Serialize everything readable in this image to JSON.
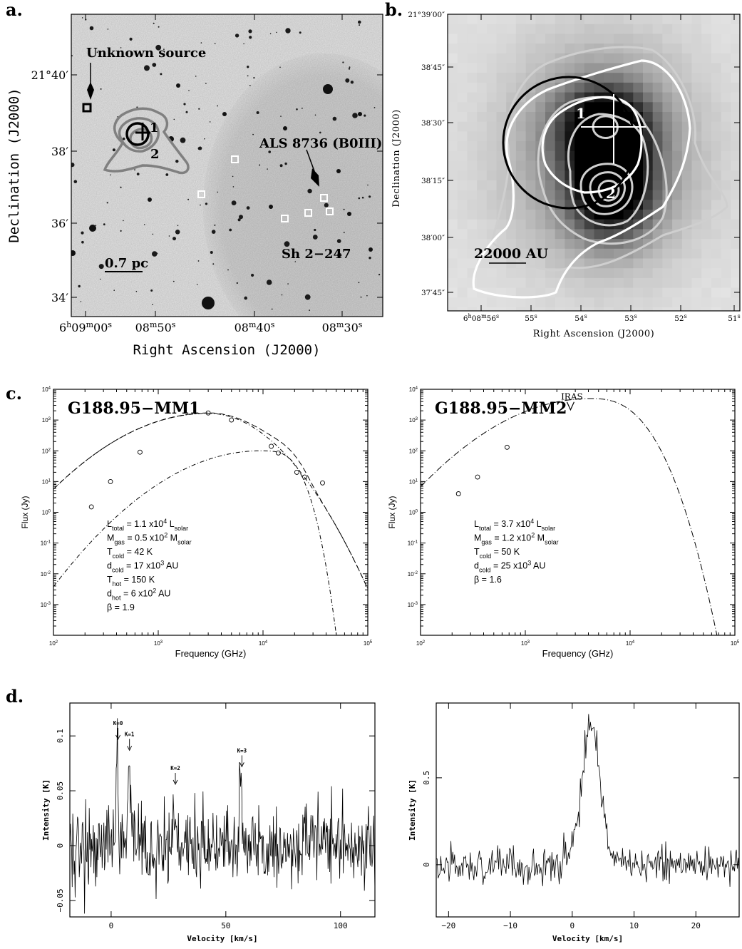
{
  "panel_labels": {
    "a": "a.",
    "b": "b.",
    "c": "c.",
    "d": "d."
  },
  "panel_a": {
    "xlabel": "Right Ascension (J2000)",
    "ylabel": "Declination (J2000)",
    "xticks": [
      {
        "h": "6",
        "hs": "h",
        "m": "09",
        "ms": "m",
        "s": "00",
        "ss": "s"
      },
      {
        "h": "",
        "hs": "",
        "m": "08",
        "ms": "m",
        "s": "50",
        "ss": "s"
      },
      {
        "h": "",
        "hs": "",
        "m": "08",
        "ms": "m",
        "s": "40",
        "ss": "s"
      },
      {
        "h": "",
        "hs": "",
        "m": "08",
        "ms": "m",
        "s": "30",
        "ss": "s"
      }
    ],
    "yticks": [
      "21°40′",
      "38′",
      "36′",
      "34′"
    ],
    "annotations": {
      "unknown": "Unknown source",
      "als": "ALS 8736 (B0III)",
      "region": "Sh 2−247",
      "scale": "0.7 pc",
      "source1": "1",
      "source2": "2"
    }
  },
  "panel_b": {
    "xlabel": "Right Ascension (J2000)",
    "ylabel": "Declination (J2000)",
    "xticks": [
      "6h08m56s",
      "55s",
      "54s",
      "53s",
      "52s",
      "51s"
    ],
    "yticks": [
      "21°39′00″",
      "38′45″",
      "38′30″",
      "38′15″",
      "38′00″",
      "37′45″"
    ],
    "annotations": {
      "scale": "22000 AU",
      "source1": "1",
      "source2": "2"
    }
  },
  "chart_data": [
    {
      "type": "scatter",
      "title": "G188.95−MM1",
      "xlabel": "Frequency (GHz)",
      "ylabel": "Flux (Jy)",
      "xscale": "log",
      "yscale": "log",
      "xlim": [
        100,
        100000
      ],
      "ylim": [
        0.0001,
        10000
      ],
      "points": [
        {
          "x": 230,
          "y": 1.5
        },
        {
          "x": 350,
          "y": 10
        },
        {
          "x": 670,
          "y": 90
        },
        {
          "x": 3000,
          "y": 1700
        },
        {
          "x": 5000,
          "y": 1000
        },
        {
          "x": 12000,
          "y": 140
        },
        {
          "x": 14000,
          "y": 85
        },
        {
          "x": 21000,
          "y": 20
        },
        {
          "x": 25000,
          "y": 14
        },
        {
          "x": 37000,
          "y": 9
        }
      ],
      "series": [
        {
          "name": "total",
          "style": "long-dash"
        },
        {
          "name": "cold",
          "style": "dash-dot"
        },
        {
          "name": "hot",
          "style": "dash-dot"
        }
      ],
      "params": [
        {
          "base": "L",
          "sub": "total",
          "mid": " = 1.1 x10",
          "sup": "4",
          "rest": " L",
          "unit_sub": "solar"
        },
        {
          "base": "M",
          "sub": "gas",
          "mid": " = 0.5 x10",
          "sup": "2",
          "rest": " M",
          "unit_sub": "solar"
        },
        {
          "base": "T",
          "sub": "cold",
          "mid": " = 42 K",
          "sup": "",
          "rest": "",
          "unit_sub": ""
        },
        {
          "base": "d",
          "sub": "cold",
          "mid": " = 17 x10",
          "sup": "3",
          "rest": " AU",
          "unit_sub": ""
        },
        {
          "base": "T",
          "sub": "hot",
          "mid": " = 150 K",
          "sup": "",
          "rest": "",
          "unit_sub": ""
        },
        {
          "base": "d",
          "sub": "hot",
          "mid": " = 6 x10",
          "sup": "2",
          "rest": " AU",
          "unit_sub": ""
        },
        {
          "base": "β",
          "sub": "",
          "mid": " = 1.9",
          "sup": "",
          "rest": "",
          "unit_sub": ""
        }
      ],
      "xtick_labels": [
        "10",
        "10",
        "10",
        "10"
      ],
      "xtick_exps": [
        "2",
        "3",
        "4",
        "5"
      ],
      "ytick_exps": [
        "4",
        "3",
        "2",
        "1",
        "0",
        "-1",
        "-2",
        "-3"
      ]
    },
    {
      "type": "scatter",
      "title": "G188.95−MM2",
      "annotation": "IRAS",
      "xlabel": "Frequency (GHz)",
      "ylabel": "Flux (Jy)",
      "xscale": "log",
      "yscale": "log",
      "xlim": [
        100,
        100000
      ],
      "ylim": [
        0.0001,
        10000
      ],
      "points": [
        {
          "x": 230,
          "y": 4
        },
        {
          "x": 350,
          "y": 14
        },
        {
          "x": 670,
          "y": 130
        }
      ],
      "upper_limit": {
        "x": 2700,
        "y": 4800
      },
      "series": [
        {
          "name": "model",
          "style": "long-dash"
        }
      ],
      "params": [
        {
          "base": "L",
          "sub": "total",
          "mid": " = 3.7 x10",
          "sup": "4",
          "rest": " L",
          "unit_sub": "solar"
        },
        {
          "base": "M",
          "sub": "gas",
          "mid": " = 1.2 x10",
          "sup": "2",
          "rest": " M",
          "unit_sub": "solar"
        },
        {
          "base": "T",
          "sub": "cold",
          "mid": " = 50 K",
          "sup": "",
          "rest": "",
          "unit_sub": ""
        },
        {
          "base": "d",
          "sub": "cold",
          "mid": " = 25 x10",
          "sup": "3",
          "rest": " AU",
          "unit_sub": ""
        },
        {
          "base": "β",
          "sub": "",
          "mid": " = 1.6",
          "sup": "",
          "rest": "",
          "unit_sub": ""
        }
      ],
      "xtick_labels": [
        "10",
        "10",
        "10",
        "10"
      ],
      "xtick_exps": [
        "2",
        "3",
        "4",
        "5"
      ],
      "ytick_exps": [
        "4",
        "3",
        "2",
        "1",
        "0",
        "-1",
        "-2",
        "-3"
      ]
    },
    {
      "type": "line",
      "xlabel": "Velocity  [km/s]",
      "ylabel": "Intensity [K]",
      "xlim": [
        -18,
        115
      ],
      "ylim": [
        -0.065,
        0.13
      ],
      "xticks": [
        0,
        50,
        100
      ],
      "yticks": [
        -0.05,
        0,
        0.05,
        0.1
      ],
      "ytick_labels": [
        "−0.05",
        "0",
        "0.05",
        "0.1"
      ],
      "annotations": [
        {
          "label": "K=0",
          "x": 3,
          "y": 0.093
        },
        {
          "label": "K=1",
          "x": 8,
          "y": 0.083
        },
        {
          "label": "K=2",
          "x": 28,
          "y": 0.052
        },
        {
          "label": "K=3",
          "x": 57,
          "y": 0.068
        }
      ],
      "peaks": [
        {
          "x": 2.6,
          "y": 0.094
        },
        {
          "x": 7.8,
          "y": 0.086
        },
        {
          "x": 27.5,
          "y": 0.05
        },
        {
          "x": 56.5,
          "y": 0.062
        }
      ],
      "noise_rms": 0.02
    },
    {
      "type": "line",
      "xlabel": "Velocity  [km/s]",
      "ylabel": "Intensity [K]",
      "xlim": [
        -22,
        27
      ],
      "ylim": [
        -0.3,
        0.93
      ],
      "xticks": [
        -20,
        -10,
        0,
        10,
        20
      ],
      "yticks": [
        0,
        0.5
      ],
      "xtick_labels": [
        "−20",
        "−10",
        "0",
        "10",
        "20"
      ],
      "ytick_labels": [
        "0",
        "0.5"
      ],
      "peak": {
        "x": 3,
        "y": 0.78,
        "width": 2.2
      },
      "noise_rms": 0.06
    }
  ]
}
